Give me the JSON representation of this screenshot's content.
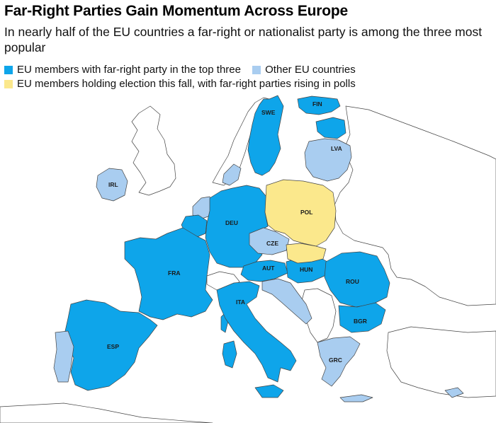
{
  "header": {
    "title": "Far-Right Parties Gain Momentum Across Europe",
    "subtitle": "In nearly half of the EU countries a far-right or nationalist party is among the three most popular"
  },
  "legend": {
    "items": [
      {
        "label": "EU members with far-right party in the top three",
        "color": "#0ea5ea"
      },
      {
        "label": "Other EU countries",
        "color": "#a9cdf0"
      },
      {
        "label": "EU members holding election this fall, with far-right parties rising in polls",
        "color": "#fbe88c"
      }
    ]
  },
  "colors": {
    "far_right": "#0ea5ea",
    "other_eu": "#a9cdf0",
    "election": "#fbe88c",
    "non_eu": "#ffffff",
    "border": "#444444"
  },
  "map_labels": {
    "swe": "SWE",
    "fin": "FIN",
    "lva": "LVA",
    "irl": "IRL",
    "pol": "POL",
    "deu": "DEU",
    "cze": "CZE",
    "aut": "AUT",
    "hun": "HUN",
    "fra": "FRA",
    "rou": "ROU",
    "ita": "ITA",
    "bgr": "BGR",
    "esp": "ESP",
    "grc": "GRC"
  }
}
